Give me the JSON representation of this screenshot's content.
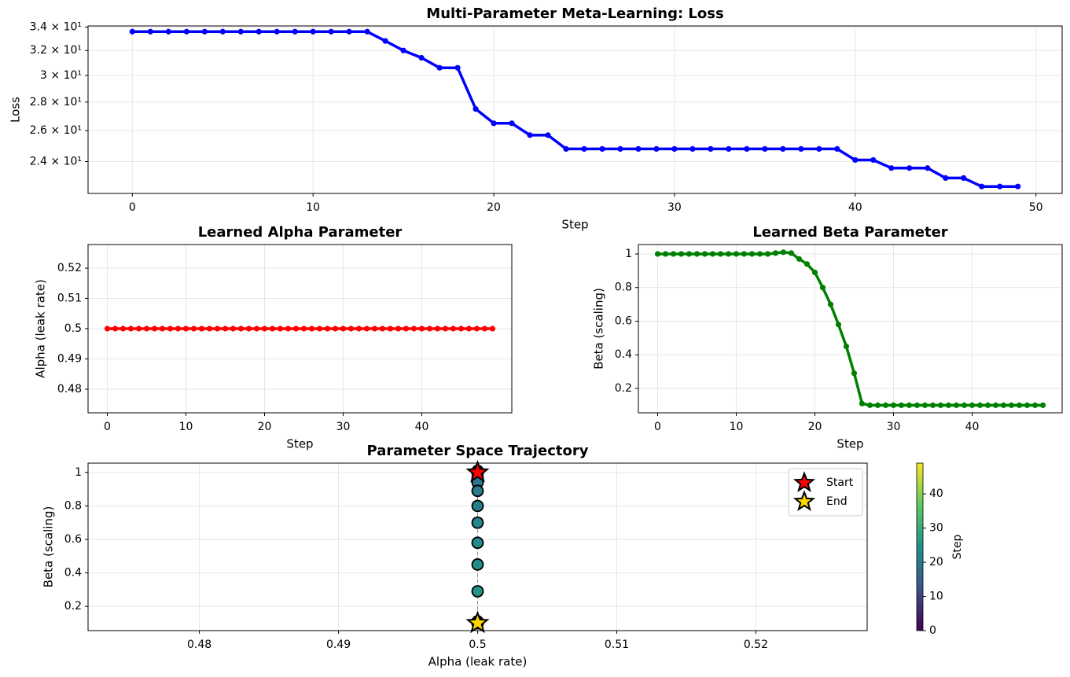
{
  "chart_data": [
    {
      "type": "line",
      "title": "Multi-Parameter Meta-Learning: Loss",
      "xlabel": "Step",
      "ylabel": "Loss",
      "color": "#0000ff",
      "yscale": "log",
      "grid": true,
      "x": [
        0,
        1,
        2,
        3,
        4,
        5,
        6,
        7,
        8,
        9,
        10,
        11,
        12,
        13,
        14,
        15,
        16,
        17,
        18,
        19,
        20,
        21,
        22,
        23,
        24,
        25,
        26,
        27,
        28,
        29,
        30,
        31,
        32,
        33,
        34,
        35,
        36,
        37,
        38,
        39,
        40,
        41,
        42,
        43,
        44,
        45,
        46,
        47,
        48,
        49
      ],
      "values": [
        33.6,
        33.6,
        33.6,
        33.6,
        33.6,
        33.6,
        33.6,
        33.6,
        33.6,
        33.6,
        33.6,
        33.6,
        33.6,
        33.6,
        32.8,
        32.0,
        31.4,
        30.6,
        30.6,
        27.5,
        26.5,
        26.5,
        25.7,
        25.7,
        24.8,
        24.8,
        24.8,
        24.8,
        24.8,
        24.8,
        24.8,
        24.8,
        24.8,
        24.8,
        24.8,
        24.8,
        24.8,
        24.8,
        24.8,
        24.8,
        24.1,
        24.1,
        23.6,
        23.6,
        23.6,
        23.0,
        23.0,
        22.5,
        22.5,
        22.5
      ],
      "xlim": [
        -2.45,
        51.45
      ],
      "xticks": [
        0,
        10,
        20,
        30,
        40,
        50
      ],
      "ylim": [
        22.1,
        34.1
      ],
      "yticks": [
        {
          "value": 24,
          "label": "2.4 × 10¹"
        },
        {
          "value": 26,
          "label": "2.6 × 10¹"
        },
        {
          "value": 28,
          "label": "2.8 × 10¹"
        },
        {
          "value": 30,
          "label": "3 × 10¹"
        },
        {
          "value": 32,
          "label": "3.2 × 10¹"
        },
        {
          "value": 34,
          "label": "3.4 × 10¹"
        }
      ]
    },
    {
      "type": "line",
      "title": "Learned Alpha Parameter",
      "xlabel": "Step",
      "ylabel": "Alpha (leak rate)",
      "color": "#ff0000",
      "grid": true,
      "x": [
        0,
        1,
        2,
        3,
        4,
        5,
        6,
        7,
        8,
        9,
        10,
        11,
        12,
        13,
        14,
        15,
        16,
        17,
        18,
        19,
        20,
        21,
        22,
        23,
        24,
        25,
        26,
        27,
        28,
        29,
        30,
        31,
        32,
        33,
        34,
        35,
        36,
        37,
        38,
        39,
        40,
        41,
        42,
        43,
        44,
        45,
        46,
        47,
        48,
        49
      ],
      "values": [
        0.5,
        0.5,
        0.5,
        0.5,
        0.5,
        0.5,
        0.5,
        0.5,
        0.5,
        0.5,
        0.5,
        0.5,
        0.5,
        0.5,
        0.5,
        0.5,
        0.5,
        0.5,
        0.5,
        0.5,
        0.5,
        0.5,
        0.5,
        0.5,
        0.5,
        0.5,
        0.5,
        0.5,
        0.5,
        0.5,
        0.5,
        0.5,
        0.5,
        0.5,
        0.5,
        0.5,
        0.5,
        0.5,
        0.5,
        0.5,
        0.5,
        0.5,
        0.5,
        0.5,
        0.5,
        0.5,
        0.5,
        0.5,
        0.5,
        0.5
      ],
      "xlim": [
        -2.45,
        51.45
      ],
      "xticks": [
        0,
        10,
        20,
        30,
        40
      ],
      "ylim": [
        0.4722,
        0.5278
      ],
      "yticks": [
        0.48,
        0.49,
        0.5,
        0.51,
        0.52
      ]
    },
    {
      "type": "line",
      "title": "Learned Beta Parameter",
      "xlabel": "Step",
      "ylabel": "Beta (scaling)",
      "color": "#008000",
      "grid": true,
      "x": [
        0,
        1,
        2,
        3,
        4,
        5,
        6,
        7,
        8,
        9,
        10,
        11,
        12,
        13,
        14,
        15,
        16,
        17,
        18,
        19,
        20,
        21,
        22,
        23,
        24,
        25,
        26,
        27,
        28,
        29,
        30,
        31,
        32,
        33,
        34,
        35,
        36,
        37,
        38,
        39,
        40,
        41,
        42,
        43,
        44,
        45,
        46,
        47,
        48,
        49
      ],
      "values": [
        1,
        1,
        1,
        1,
        1,
        1,
        1,
        1,
        1,
        1,
        1,
        1,
        1,
        1,
        1,
        1.005,
        1.01,
        1.005,
        0.97,
        0.94,
        0.89,
        0.8,
        0.7,
        0.58,
        0.45,
        0.29,
        0.11,
        0.1,
        0.1,
        0.1,
        0.1,
        0.1,
        0.1,
        0.1,
        0.1,
        0.1,
        0.1,
        0.1,
        0.1,
        0.1,
        0.1,
        0.1,
        0.1,
        0.1,
        0.1,
        0.1,
        0.1,
        0.1,
        0.1,
        0.1
      ],
      "xlim": [
        -2.45,
        51.45
      ],
      "xticks": [
        0,
        10,
        20,
        30,
        40
      ],
      "ylim": [
        0.055,
        1.056
      ],
      "yticks": [
        0.2,
        0.4,
        0.6,
        0.8,
        1.0
      ]
    },
    {
      "type": "scatter",
      "title": "Parameter Space Trajectory",
      "xlabel": "Alpha (leak rate)",
      "ylabel": "Beta (scaling)",
      "grid": true,
      "x": [
        0.5,
        0.5,
        0.5,
        0.5,
        0.5,
        0.5,
        0.5,
        0.5,
        0.5,
        0.5,
        0.5,
        0.5,
        0.5,
        0.5,
        0.5,
        0.5,
        0.5,
        0.5,
        0.5,
        0.5,
        0.5,
        0.5,
        0.5,
        0.5,
        0.5,
        0.5,
        0.5,
        0.5,
        0.5,
        0.5,
        0.5,
        0.5,
        0.5,
        0.5,
        0.5,
        0.5,
        0.5,
        0.5,
        0.5,
        0.5,
        0.5,
        0.5,
        0.5,
        0.5,
        0.5,
        0.5,
        0.5,
        0.5,
        0.5,
        0.5
      ],
      "y": [
        1,
        1,
        1,
        1,
        1,
        1,
        1,
        1,
        1,
        1,
        1,
        1,
        1,
        1,
        1,
        1.005,
        1.01,
        1.005,
        0.97,
        0.94,
        0.89,
        0.8,
        0.7,
        0.58,
        0.45,
        0.29,
        0.11,
        0.1,
        0.1,
        0.1,
        0.1,
        0.1,
        0.1,
        0.1,
        0.1,
        0.1,
        0.1,
        0.1,
        0.1,
        0.1,
        0.1,
        0.1,
        0.1,
        0.1,
        0.1,
        0.1,
        0.1,
        0.1,
        0.1,
        0.1
      ],
      "color_values": [
        0,
        1,
        2,
        3,
        4,
        5,
        6,
        7,
        8,
        9,
        10,
        11,
        12,
        13,
        14,
        15,
        16,
        17,
        18,
        19,
        20,
        21,
        22,
        23,
        24,
        25,
        26,
        27,
        28,
        29,
        30,
        31,
        32,
        33,
        34,
        35,
        36,
        37,
        38,
        39,
        40,
        41,
        42,
        43,
        44,
        45,
        46,
        47,
        48,
        49
      ],
      "markers": [
        {
          "name": "Start",
          "x": 0.5,
          "y": 1,
          "color": "#ff0000"
        },
        {
          "name": "End",
          "x": 0.5,
          "y": 0.1,
          "color": "#ffd700"
        }
      ],
      "legend": "upper right",
      "xlim": [
        0.472,
        0.528
      ],
      "xticks": [
        0.48,
        0.49,
        0.5,
        0.51,
        0.52
      ],
      "ylim": [
        0.055,
        1.056
      ],
      "yticks": [
        0.2,
        0.4,
        0.6,
        0.8,
        1.0
      ],
      "colorbar": {
        "label": "Step",
        "lim": [
          0,
          49
        ],
        "ticks": [
          0,
          10,
          20,
          30,
          40
        ]
      }
    }
  ]
}
